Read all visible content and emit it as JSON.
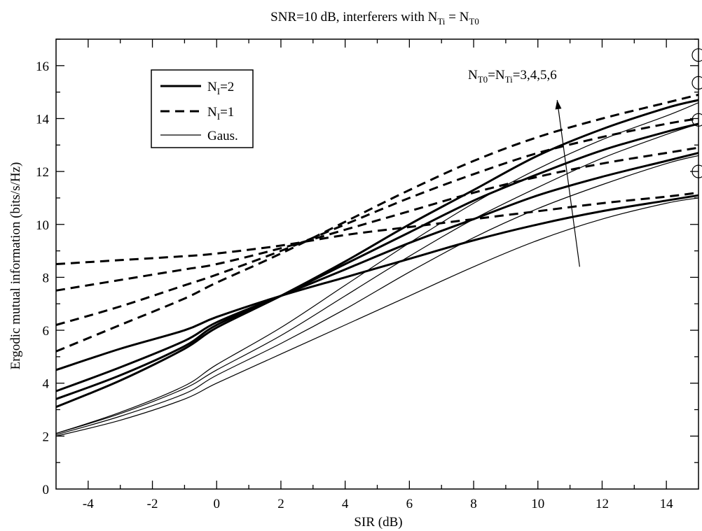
{
  "chart_data": {
    "type": "line",
    "title_parts": {
      "prefix": "SNR=10 dB,  interferers with N",
      "sub1": "Ti",
      "mid": " = N",
      "sub2": "T0"
    },
    "xlabel": "SIR (dB)",
    "ylabel": "Ergodic  mutual  information  (bits/s/Hz)",
    "xlim": [
      -5,
      15
    ],
    "ylim": [
      0,
      17
    ],
    "x_ticks": [
      -4,
      -2,
      0,
      2,
      4,
      6,
      8,
      10,
      12,
      14
    ],
    "y_ticks": [
      0,
      2,
      4,
      6,
      8,
      10,
      12,
      14,
      16
    ],
    "grid": false,
    "legend": {
      "placement": "top-left",
      "entries": [
        {
          "base": "N",
          "sub": "I",
          "suffix": "=2",
          "style": "solid-thick"
        },
        {
          "base": "N",
          "sub": "I",
          "suffix": "=1",
          "style": "dashed"
        },
        {
          "base": "Gaus.",
          "sub": "",
          "suffix": "",
          "style": "solid-thin"
        }
      ]
    },
    "annotation": {
      "p1": "N",
      "s1": "T0",
      "p2": "=N",
      "s2": "Ti",
      "p3": "=3,4,5,6",
      "arrow_from": [
        11.3,
        8.4
      ],
      "arrow_to": [
        10.6,
        14.7
      ]
    },
    "markers": [
      {
        "x": 15,
        "y": 16.4
      },
      {
        "x": 15,
        "y": 15.35
      },
      {
        "x": 15,
        "y": 13.95
      },
      {
        "x": 15,
        "y": 12.0
      }
    ],
    "series": [
      {
        "group": "NI=2",
        "style": "solid-thick",
        "x": [
          -5,
          -3,
          -1,
          0,
          2,
          4,
          6,
          8,
          10,
          12,
          14,
          15
        ],
        "y": [
          4.5,
          5.3,
          6.0,
          6.5,
          7.3,
          8.0,
          8.7,
          9.4,
          10.0,
          10.5,
          10.9,
          11.1
        ]
      },
      {
        "group": "NI=2",
        "style": "solid-thick",
        "x": [
          -5,
          -3,
          -1,
          0,
          2,
          4,
          6,
          8,
          10,
          12,
          14,
          15
        ],
        "y": [
          3.7,
          4.6,
          5.6,
          6.3,
          7.3,
          8.3,
          9.3,
          10.2,
          11.1,
          11.8,
          12.4,
          12.7
        ]
      },
      {
        "group": "NI=2",
        "style": "solid-thick",
        "x": [
          -5,
          -3,
          -1,
          0,
          2,
          4,
          6,
          8,
          10,
          12,
          14,
          15
        ],
        "y": [
          3.4,
          4.3,
          5.4,
          6.2,
          7.3,
          8.5,
          9.7,
          10.9,
          11.9,
          12.8,
          13.5,
          13.8
        ]
      },
      {
        "group": "NI=2",
        "style": "solid-thick",
        "x": [
          -5,
          -3,
          -1,
          0,
          2,
          4,
          6,
          8,
          10,
          12,
          14,
          15
        ],
        "y": [
          3.1,
          4.1,
          5.3,
          6.1,
          7.3,
          8.6,
          10.0,
          11.3,
          12.6,
          13.6,
          14.4,
          14.7
        ]
      },
      {
        "group": "NI=1",
        "style": "dashed",
        "x": [
          -5,
          -3,
          -1,
          0,
          2,
          4,
          6,
          8,
          10,
          12,
          14,
          15
        ],
        "y": [
          8.5,
          8.65,
          8.8,
          8.9,
          9.2,
          9.6,
          9.9,
          10.2,
          10.5,
          10.8,
          11.05,
          11.2
        ]
      },
      {
        "group": "NI=1",
        "style": "dashed",
        "x": [
          -5,
          -3,
          -1,
          0,
          2,
          4,
          6,
          8,
          10,
          12,
          14,
          15
        ],
        "y": [
          7.5,
          7.9,
          8.3,
          8.5,
          9.1,
          9.8,
          10.5,
          11.2,
          11.8,
          12.3,
          12.7,
          12.9
        ]
      },
      {
        "group": "NI=1",
        "style": "dashed",
        "x": [
          -5,
          -3,
          -1,
          0,
          2,
          4,
          6,
          8,
          10,
          12,
          14,
          15
        ],
        "y": [
          6.2,
          6.9,
          7.7,
          8.1,
          9.0,
          10.0,
          11.0,
          11.9,
          12.7,
          13.3,
          13.8,
          14.0
        ]
      },
      {
        "group": "NI=1",
        "style": "dashed",
        "x": [
          -5,
          -3,
          -1,
          0,
          2,
          4,
          6,
          8,
          10,
          12,
          14,
          15
        ],
        "y": [
          5.2,
          6.2,
          7.2,
          7.8,
          8.9,
          10.1,
          11.3,
          12.4,
          13.3,
          14.0,
          14.6,
          14.9
        ]
      },
      {
        "group": "Gaus.",
        "style": "solid-thin",
        "x": [
          -5,
          -3,
          -1,
          0,
          2,
          4,
          6,
          8,
          10,
          12,
          14,
          15
        ],
        "y": [
          2.0,
          2.6,
          3.4,
          4.0,
          5.1,
          6.2,
          7.3,
          8.4,
          9.4,
          10.2,
          10.8,
          11.0
        ]
      },
      {
        "group": "Gaus.",
        "style": "solid-thin",
        "x": [
          -5,
          -3,
          -1,
          0,
          2,
          4,
          6,
          8,
          10,
          12,
          14,
          15
        ],
        "y": [
          2.05,
          2.75,
          3.6,
          4.3,
          5.5,
          6.8,
          8.2,
          9.5,
          10.6,
          11.5,
          12.3,
          12.6
        ]
      },
      {
        "group": "Gaus.",
        "style": "solid-thin",
        "x": [
          -5,
          -3,
          -1,
          0,
          2,
          4,
          6,
          8,
          10,
          12,
          14,
          15
        ],
        "y": [
          2.1,
          2.85,
          3.8,
          4.5,
          5.8,
          7.3,
          8.8,
          10.2,
          11.4,
          12.5,
          13.4,
          13.8
        ]
      },
      {
        "group": "Gaus.",
        "style": "solid-thin",
        "x": [
          -5,
          -3,
          -1,
          0,
          2,
          4,
          6,
          8,
          10,
          12,
          14,
          15
        ],
        "y": [
          2.1,
          2.9,
          3.9,
          4.7,
          6.1,
          7.7,
          9.3,
          10.8,
          12.1,
          13.2,
          14.1,
          14.6
        ]
      }
    ]
  }
}
